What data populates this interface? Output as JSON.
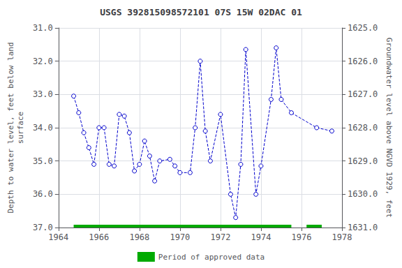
{
  "chart_data": {
    "type": "line",
    "title": "USGS 392815098572101 07S 15W 02DAC 01",
    "ylabel": "Depth to water level, feet below land\nsurface",
    "y2label": "Groundwater level above NGVD 1929, feet",
    "x": [
      1964.75,
      1965.0,
      1965.25,
      1965.5,
      1965.75,
      1966.0,
      1966.25,
      1966.5,
      1966.75,
      1967.0,
      1967.25,
      1967.5,
      1967.75,
      1968.0,
      1968.25,
      1968.5,
      1968.75,
      1969.0,
      1969.5,
      1969.75,
      1970.0,
      1970.5,
      1970.75,
      1971.0,
      1971.25,
      1971.5,
      1972.0,
      1972.5,
      1972.75,
      1973.0,
      1973.25,
      1973.75,
      1974.0,
      1974.5,
      1974.75,
      1975.0,
      1975.5,
      1976.75,
      1977.5
    ],
    "series": [
      {
        "type": "line",
        "color": "#0000cc",
        "line_style": "dashed",
        "marker": "circle",
        "values": [
          33.05,
          33.55,
          34.15,
          34.6,
          35.1,
          34.0,
          34.0,
          35.1,
          35.15,
          33.6,
          33.65,
          34.15,
          35.3,
          35.1,
          34.4,
          34.85,
          35.6,
          35.0,
          34.95,
          35.15,
          35.35,
          35.35,
          34.0,
          32.0,
          34.1,
          35.0,
          33.6,
          36.0,
          36.7,
          35.1,
          31.65,
          36.0,
          35.15,
          33.15,
          31.6,
          33.15,
          33.55,
          34.0,
          34.1
        ]
      },
      {
        "type": "bar",
        "orientation": "horizontal",
        "name": "Period of approved data",
        "color": "#00aa00",
        "values": [
          [
            1964.75,
            1975.5
          ],
          [
            1976.25,
            1977.0
          ]
        ]
      }
    ],
    "xlim": [
      1964,
      1978
    ],
    "xticks": [
      1964,
      1966,
      1968,
      1970,
      1972,
      1974,
      1976,
      1978
    ],
    "ylim": [
      37.0,
      31.0
    ],
    "yticks": [
      {
        "value": 31.0,
        "label": "31.0"
      },
      {
        "value": 32.0,
        "label": "32.0"
      },
      {
        "value": 33.0,
        "label": "33.0"
      },
      {
        "value": 34.0,
        "label": "34.0"
      },
      {
        "value": 35.0,
        "label": "35.0"
      },
      {
        "value": 36.0,
        "label": "36.0"
      },
      {
        "value": 37.0,
        "label": "37.0"
      }
    ],
    "y2lim": [
      1631.0,
      1625.0
    ],
    "y2ticks": [
      {
        "value": 1625.0,
        "label": "1625.0"
      },
      {
        "value": 1626.0,
        "label": "1626.0"
      },
      {
        "value": 1627.0,
        "label": "1627.0"
      },
      {
        "value": 1628.0,
        "label": "1628.0"
      },
      {
        "value": 1629.0,
        "label": "1629.0"
      },
      {
        "value": 1630.0,
        "label": "1630.0"
      },
      {
        "value": 1631.0,
        "label": "1631.0"
      }
    ],
    "grid": true,
    "legend": "bottom"
  }
}
